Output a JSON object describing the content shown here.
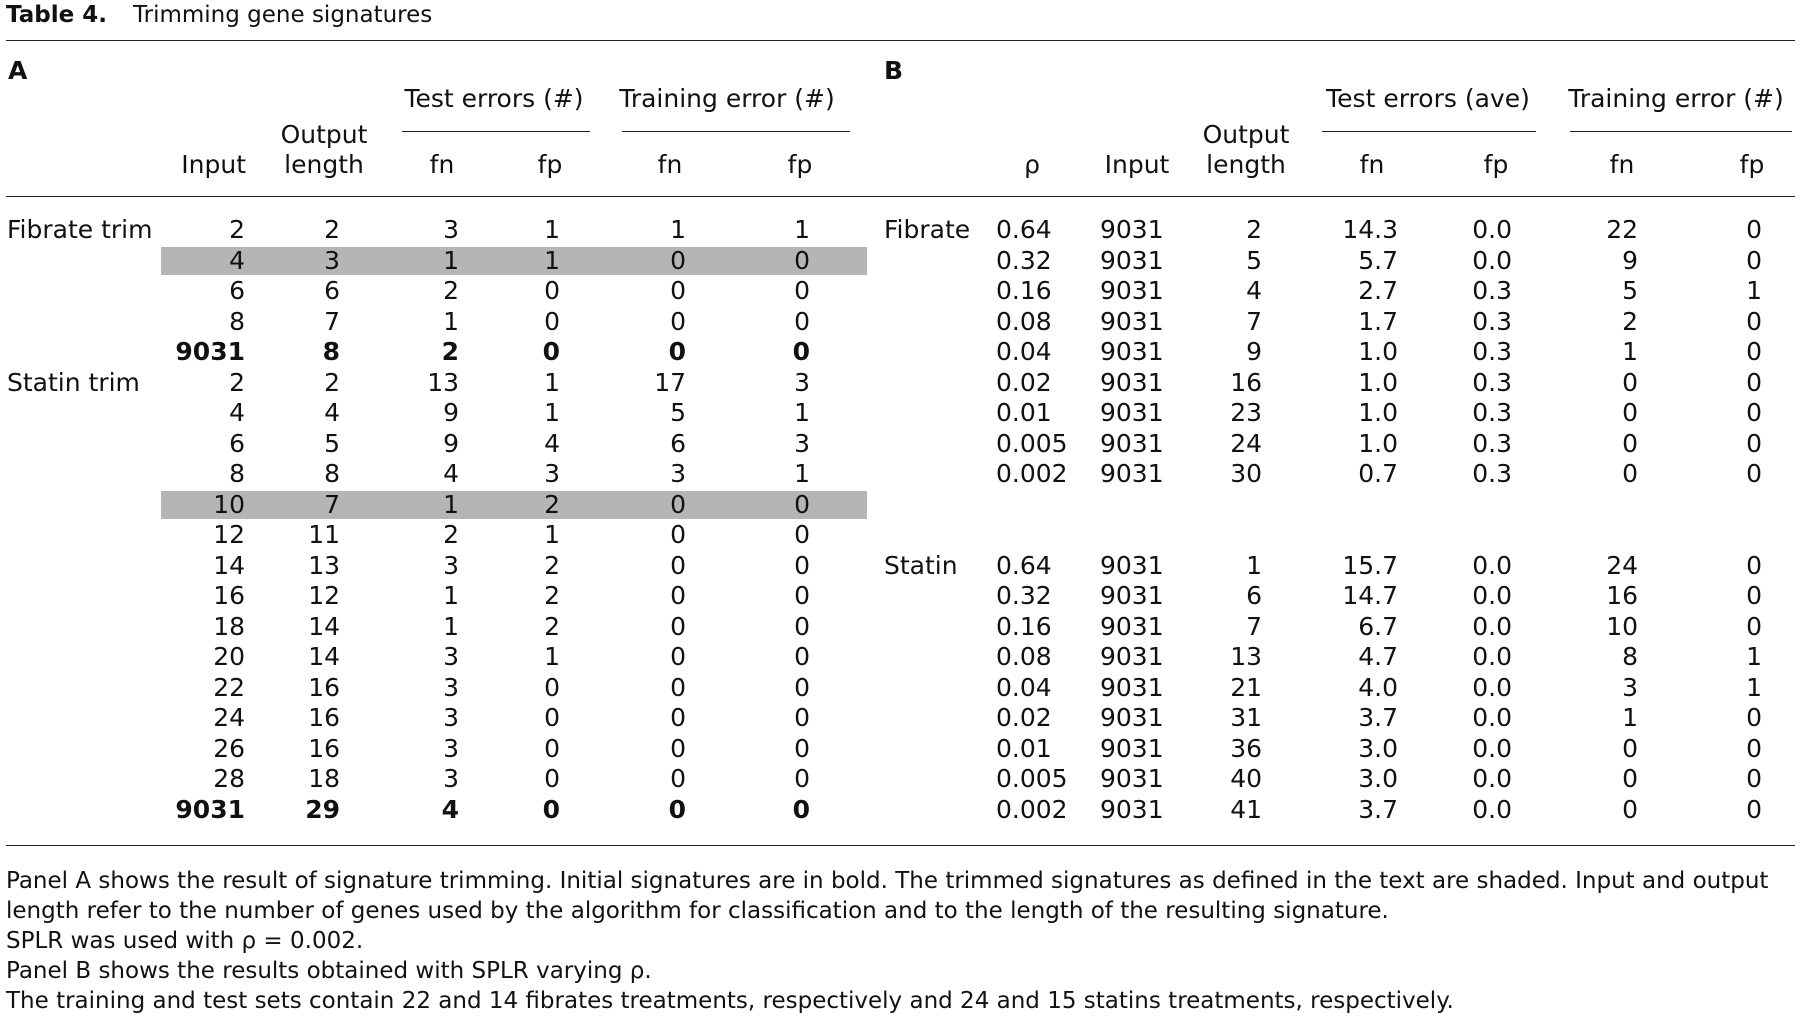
{
  "table": {
    "number": "Table 4.",
    "title": "Trimming gene signatures"
  },
  "panel_a": {
    "label": "A",
    "headers": {
      "input": "Input",
      "output_length_1": "Output",
      "output_length_2": "length",
      "test_errors": "Test errors (#)",
      "training_error": "Training error (#)",
      "fn": "fn",
      "fp": "fp"
    },
    "groups": [
      {
        "name": "Fibrate trim",
        "rows": [
          {
            "input": "2",
            "output": "2",
            "test_fn": "3",
            "test_fp": "1",
            "train_fn": "1",
            "train_fp": "1",
            "shaded": false,
            "bold": false
          },
          {
            "input": "4",
            "output": "3",
            "test_fn": "1",
            "test_fp": "1",
            "train_fn": "0",
            "train_fp": "0",
            "shaded": true,
            "bold": false
          },
          {
            "input": "6",
            "output": "6",
            "test_fn": "2",
            "test_fp": "0",
            "train_fn": "0",
            "train_fp": "0",
            "shaded": false,
            "bold": false
          },
          {
            "input": "8",
            "output": "7",
            "test_fn": "1",
            "test_fp": "0",
            "train_fn": "0",
            "train_fp": "0",
            "shaded": false,
            "bold": false
          },
          {
            "input": "9031",
            "output": "8",
            "test_fn": "2",
            "test_fp": "0",
            "train_fn": "0",
            "train_fp": "0",
            "shaded": false,
            "bold": true
          }
        ]
      },
      {
        "name": "Statin trim",
        "rows": [
          {
            "input": "2",
            "output": "2",
            "test_fn": "13",
            "test_fp": "1",
            "train_fn": "17",
            "train_fp": "3",
            "shaded": false,
            "bold": false
          },
          {
            "input": "4",
            "output": "4",
            "test_fn": "9",
            "test_fp": "1",
            "train_fn": "5",
            "train_fp": "1",
            "shaded": false,
            "bold": false
          },
          {
            "input": "6",
            "output": "5",
            "test_fn": "9",
            "test_fp": "4",
            "train_fn": "6",
            "train_fp": "3",
            "shaded": false,
            "bold": false
          },
          {
            "input": "8",
            "output": "8",
            "test_fn": "4",
            "test_fp": "3",
            "train_fn": "3",
            "train_fp": "1",
            "shaded": false,
            "bold": false
          },
          {
            "input": "10",
            "output": "7",
            "test_fn": "1",
            "test_fp": "2",
            "train_fn": "0",
            "train_fp": "0",
            "shaded": true,
            "bold": false
          },
          {
            "input": "12",
            "output": "11",
            "test_fn": "2",
            "test_fp": "1",
            "train_fn": "0",
            "train_fp": "0",
            "shaded": false,
            "bold": false
          },
          {
            "input": "14",
            "output": "13",
            "test_fn": "3",
            "test_fp": "2",
            "train_fn": "0",
            "train_fp": "0",
            "shaded": false,
            "bold": false
          },
          {
            "input": "16",
            "output": "12",
            "test_fn": "1",
            "test_fp": "2",
            "train_fn": "0",
            "train_fp": "0",
            "shaded": false,
            "bold": false
          },
          {
            "input": "18",
            "output": "14",
            "test_fn": "1",
            "test_fp": "2",
            "train_fn": "0",
            "train_fp": "0",
            "shaded": false,
            "bold": false
          },
          {
            "input": "20",
            "output": "14",
            "test_fn": "3",
            "test_fp": "1",
            "train_fn": "0",
            "train_fp": "0",
            "shaded": false,
            "bold": false
          },
          {
            "input": "22",
            "output": "16",
            "test_fn": "3",
            "test_fp": "0",
            "train_fn": "0",
            "train_fp": "0",
            "shaded": false,
            "bold": false
          },
          {
            "input": "24",
            "output": "16",
            "test_fn": "3",
            "test_fp": "0",
            "train_fn": "0",
            "train_fp": "0",
            "shaded": false,
            "bold": false
          },
          {
            "input": "26",
            "output": "16",
            "test_fn": "3",
            "test_fp": "0",
            "train_fn": "0",
            "train_fp": "0",
            "shaded": false,
            "bold": false
          },
          {
            "input": "28",
            "output": "18",
            "test_fn": "3",
            "test_fp": "0",
            "train_fn": "0",
            "train_fp": "0",
            "shaded": false,
            "bold": false
          },
          {
            "input": "9031",
            "output": "29",
            "test_fn": "4",
            "test_fp": "0",
            "train_fn": "0",
            "train_fp": "0",
            "shaded": false,
            "bold": true
          }
        ]
      }
    ]
  },
  "panel_b": {
    "label": "B",
    "headers": {
      "rho": "ρ",
      "input": "Input",
      "output_length_1": "Output",
      "output_length_2": "length",
      "test_errors": "Test errors (ave)",
      "training_error": "Training error (#)",
      "fn": "fn",
      "fp": "fp"
    },
    "groups": [
      {
        "name": "Fibrate",
        "rows": [
          {
            "rho": "0.64",
            "input": "9031",
            "output": "2",
            "test_fn": "14.3",
            "test_fp": "0.0",
            "train_fn": "22",
            "train_fp": "0"
          },
          {
            "rho": "0.32",
            "input": "9031",
            "output": "5",
            "test_fn": "5.7",
            "test_fp": "0.0",
            "train_fn": "9",
            "train_fp": "0"
          },
          {
            "rho": "0.16",
            "input": "9031",
            "output": "4",
            "test_fn": "2.7",
            "test_fp": "0.3",
            "train_fn": "5",
            "train_fp": "1"
          },
          {
            "rho": "0.08",
            "input": "9031",
            "output": "7",
            "test_fn": "1.7",
            "test_fp": "0.3",
            "train_fn": "2",
            "train_fp": "0"
          },
          {
            "rho": "0.04",
            "input": "9031",
            "output": "9",
            "test_fn": "1.0",
            "test_fp": "0.3",
            "train_fn": "1",
            "train_fp": "0"
          },
          {
            "rho": "0.02",
            "input": "9031",
            "output": "16",
            "test_fn": "1.0",
            "test_fp": "0.3",
            "train_fn": "0",
            "train_fp": "0"
          },
          {
            "rho": "0.01",
            "input": "9031",
            "output": "23",
            "test_fn": "1.0",
            "test_fp": "0.3",
            "train_fn": "0",
            "train_fp": "0"
          },
          {
            "rho": "0.005",
            "input": "9031",
            "output": "24",
            "test_fn": "1.0",
            "test_fp": "0.3",
            "train_fn": "0",
            "train_fp": "0"
          },
          {
            "rho": "0.002",
            "input": "9031",
            "output": "30",
            "test_fn": "0.7",
            "test_fp": "0.3",
            "train_fn": "0",
            "train_fp": "0"
          }
        ]
      },
      {
        "name": "Statin",
        "rows": [
          {
            "rho": "0.64",
            "input": "9031",
            "output": "1",
            "test_fn": "15.7",
            "test_fp": "0.0",
            "train_fn": "24",
            "train_fp": "0"
          },
          {
            "rho": "0.32",
            "input": "9031",
            "output": "6",
            "test_fn": "14.7",
            "test_fp": "0.0",
            "train_fn": "16",
            "train_fp": "0"
          },
          {
            "rho": "0.16",
            "input": "9031",
            "output": "7",
            "test_fn": "6.7",
            "test_fp": "0.0",
            "train_fn": "10",
            "train_fp": "0"
          },
          {
            "rho": "0.08",
            "input": "9031",
            "output": "13",
            "test_fn": "4.7",
            "test_fp": "0.0",
            "train_fn": "8",
            "train_fp": "1"
          },
          {
            "rho": "0.04",
            "input": "9031",
            "output": "21",
            "test_fn": "4.0",
            "test_fp": "0.0",
            "train_fn": "3",
            "train_fp": "1"
          },
          {
            "rho": "0.02",
            "input": "9031",
            "output": "31",
            "test_fn": "3.7",
            "test_fp": "0.0",
            "train_fn": "1",
            "train_fp": "0"
          },
          {
            "rho": "0.01",
            "input": "9031",
            "output": "36",
            "test_fn": "3.0",
            "test_fp": "0.0",
            "train_fn": "0",
            "train_fp": "0"
          },
          {
            "rho": "0.005",
            "input": "9031",
            "output": "40",
            "test_fn": "3.0",
            "test_fp": "0.0",
            "train_fn": "0",
            "train_fp": "0"
          },
          {
            "rho": "0.002",
            "input": "9031",
            "output": "41",
            "test_fn": "3.7",
            "test_fp": "0.0",
            "train_fn": "0",
            "train_fp": "0"
          }
        ]
      }
    ]
  },
  "notes": [
    "Panel A shows the result of signature trimming. Initial signatures are in bold. The trimmed signatures as defined in the text are shaded. Input and output",
    "length refer to the number of genes used by the algorithm for classification and to the length of the resulting signature.",
    "SPLR was used with ρ = 0.002.",
    "Panel B shows the results obtained with SPLR varying ρ.",
    "The training and test sets contain 22 and 14 fibrates treatments, respectively and 24 and 15 statins treatments, respectively."
  ]
}
